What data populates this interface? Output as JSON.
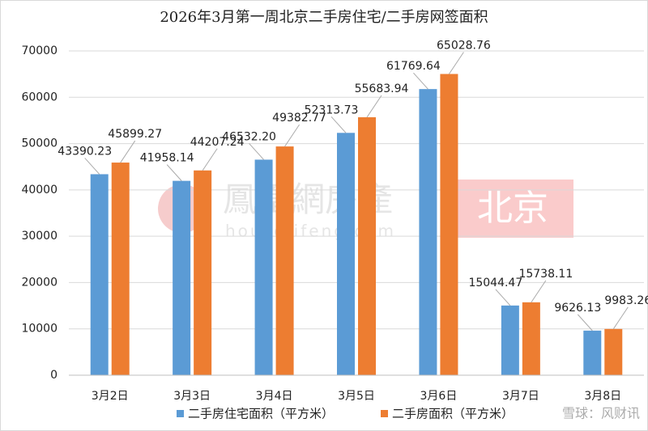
{
  "chart_data": {
    "type": "bar",
    "title": "2026年3月第一周北京二手房住宅/二手房网签面积",
    "categories": [
      "3月2日",
      "3月3日",
      "3月4日",
      "3月5日",
      "3月6日",
      "3月7日",
      "3月8日"
    ],
    "series": [
      {
        "name": "二手房住宅面积（平方米）",
        "color": "#5b9bd5",
        "values": [
          43390.23,
          41958.14,
          46532.2,
          52313.73,
          61769.64,
          15044.47,
          9626.13
        ],
        "value_labels": [
          "43390.23",
          "41958.14",
          "46532.20",
          "52313.73",
          "61769.64",
          "15044.47",
          "9626.13"
        ]
      },
      {
        "name": "二手房面积（平方米）",
        "color": "#ed7d31",
        "values": [
          45899.27,
          44207.24,
          49382.77,
          55683.94,
          65028.76,
          15738.11,
          9983.26
        ],
        "value_labels": [
          "45899.27",
          "44207.24",
          "49382.77",
          "55683.94",
          "65028.76",
          "15738.11",
          "9983.26"
        ]
      }
    ],
    "ylim": [
      0,
      70000
    ],
    "yticks": [
      0,
      10000,
      20000,
      30000,
      40000,
      50000,
      60000,
      70000
    ],
    "grid": true,
    "legend": "bottom"
  },
  "watermarks": [
    "鳳凰網房產",
    "house.ifeng.com",
    "北京",
    "雪球：风财讯"
  ]
}
